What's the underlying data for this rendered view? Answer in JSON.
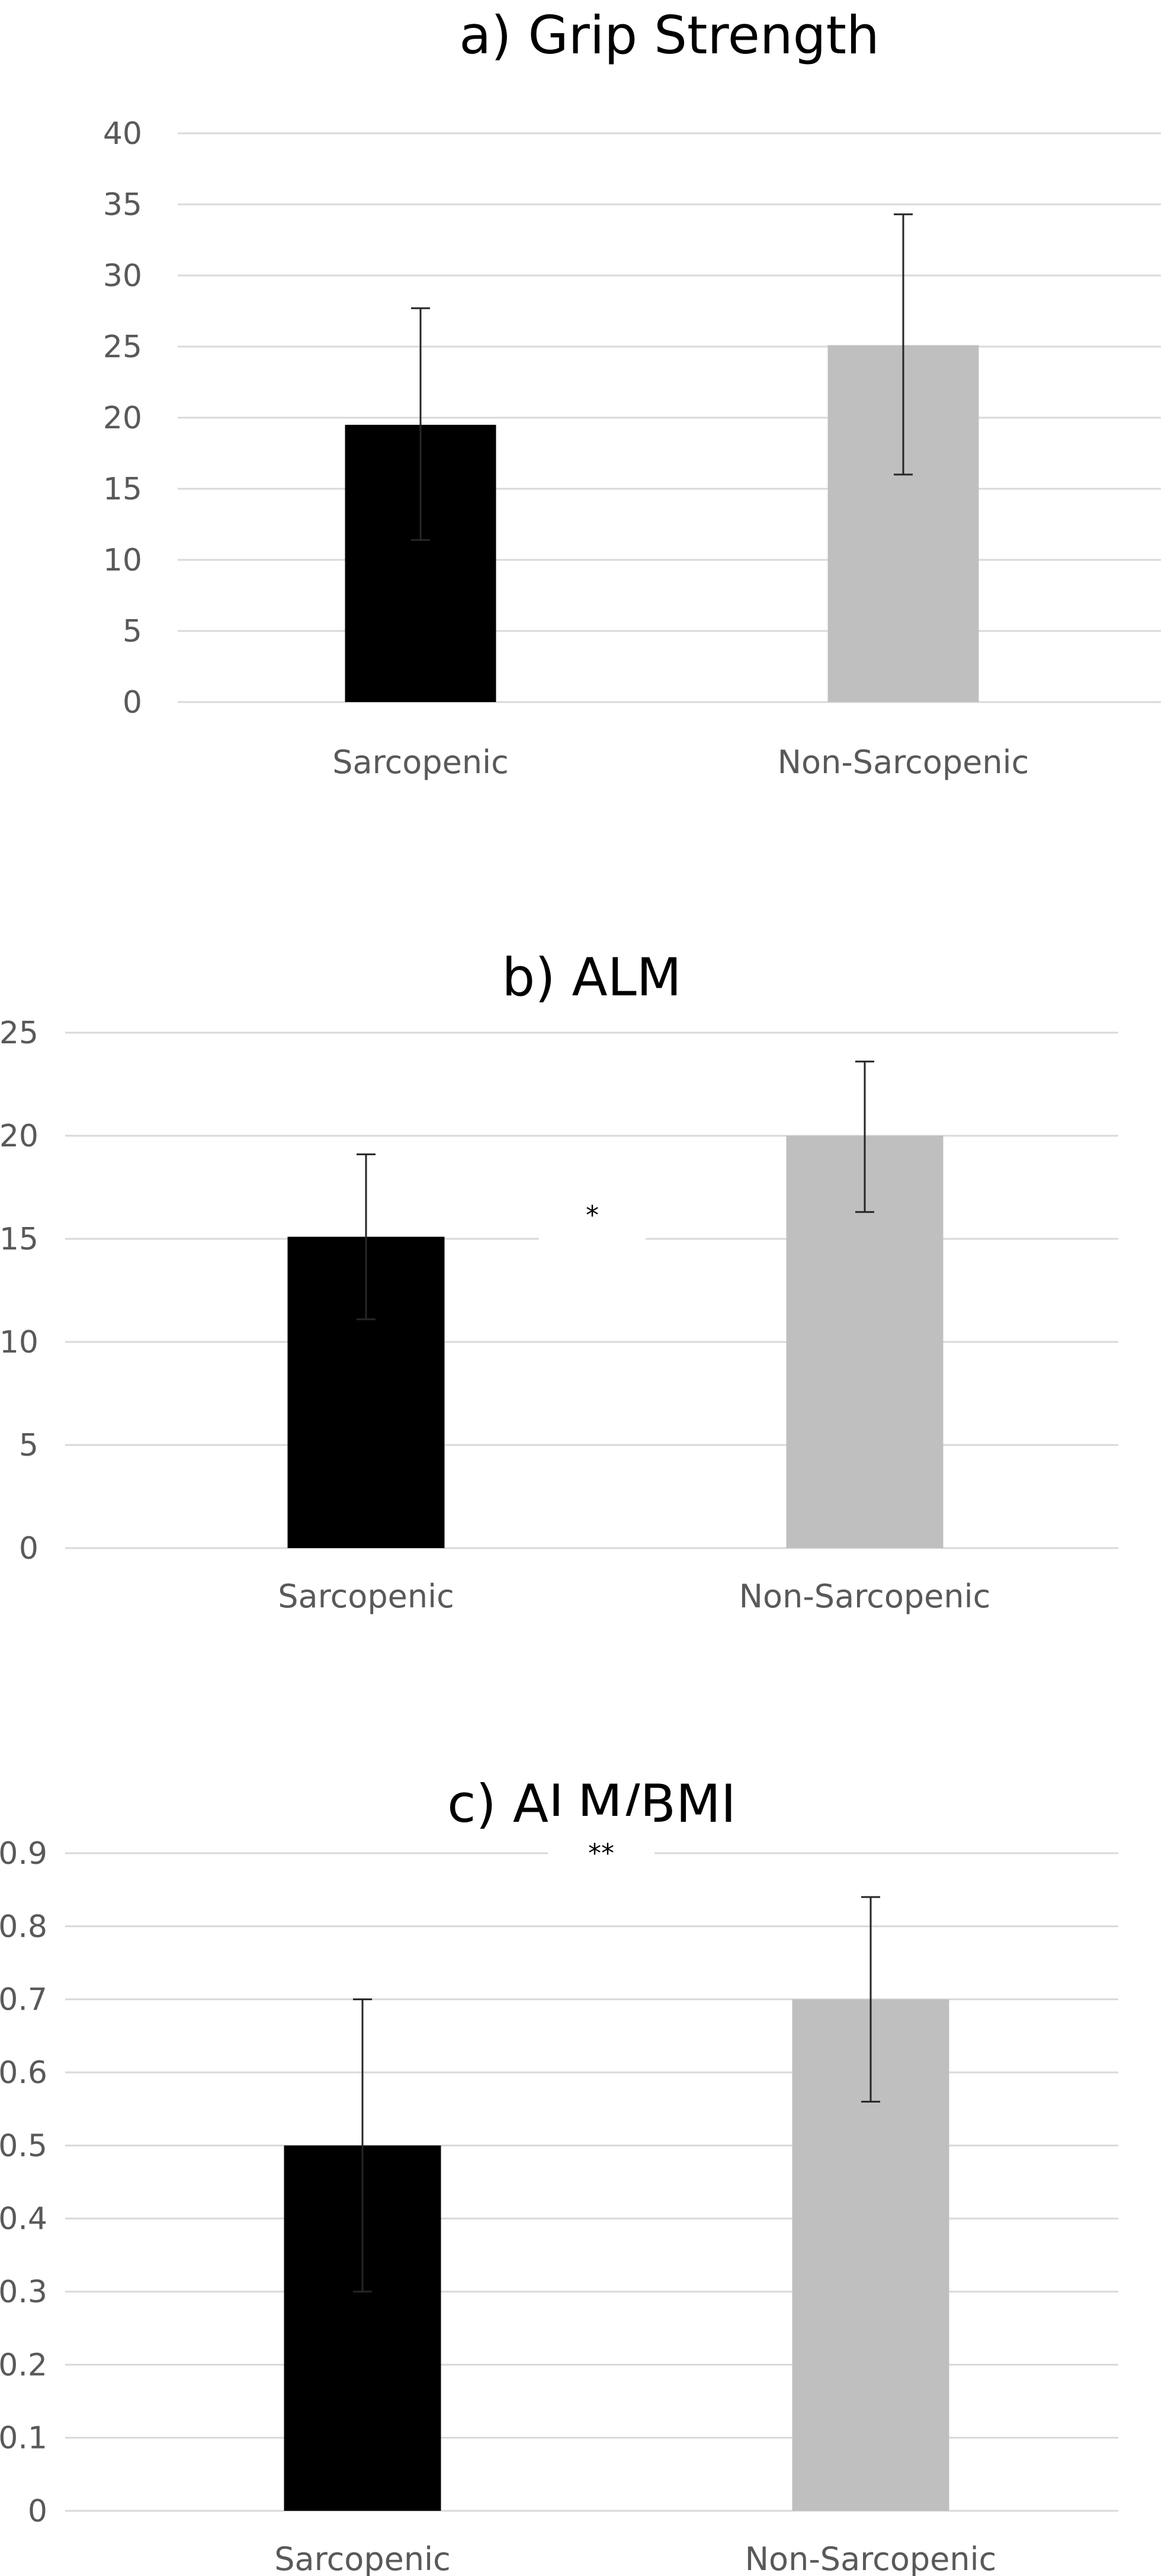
{
  "chart_data": [
    {
      "type": "bar",
      "title": "a) Grip Strength",
      "categories": [
        "Sarcopenic",
        "Non-Sarcopenic"
      ],
      "values": [
        19.5,
        25.1
      ],
      "error_low": [
        11.4,
        16.0
      ],
      "error_high": [
        27.7,
        34.3
      ],
      "bar_colors": [
        "#000000",
        "#bfbfbf"
      ],
      "ylim": [
        0,
        40
      ],
      "yticks": [
        0,
        5,
        10,
        15,
        20,
        25,
        30,
        35,
        40
      ],
      "ytick_labels": [
        "0",
        "5",
        "10",
        "15",
        "20",
        "25",
        "30",
        "35",
        "40"
      ],
      "grid": true,
      "legend": "none",
      "annotation": ""
    },
    {
      "type": "bar",
      "title": "b) ALM",
      "categories": [
        "Sarcopenic",
        "Non-Sarcopenic"
      ],
      "values": [
        15.1,
        20.0
      ],
      "error_low": [
        11.1,
        16.3
      ],
      "error_high": [
        19.1,
        23.6
      ],
      "bar_colors": [
        "#000000",
        "#bfbfbf"
      ],
      "ylim": [
        0,
        25
      ],
      "yticks": [
        0,
        5,
        10,
        15,
        20,
        25
      ],
      "ytick_labels": [
        "0",
        "5",
        "10",
        "15",
        "20",
        "25"
      ],
      "grid": true,
      "legend": "none",
      "annotation": "*"
    },
    {
      "type": "bar",
      "title": "c) ALM/BMI",
      "categories": [
        "Sarcopenic",
        "Non-Sarcopenic"
      ],
      "values": [
        0.5,
        0.7
      ],
      "error_low": [
        0.3,
        0.56
      ],
      "error_high": [
        0.7,
        0.84
      ],
      "bar_colors": [
        "#000000",
        "#bfbfbf"
      ],
      "ylim": [
        0,
        0.9
      ],
      "yticks": [
        0,
        0.1,
        0.2,
        0.3,
        0.4,
        0.5,
        0.6,
        0.7,
        0.8,
        0.9
      ],
      "ytick_labels": [
        "0",
        "0.1",
        "0.2",
        "0.3",
        "0.4",
        "0.5",
        "0.6",
        "0.7",
        "0.8",
        "0.9"
      ],
      "grid": true,
      "legend": "none",
      "annotation": "**"
    }
  ]
}
